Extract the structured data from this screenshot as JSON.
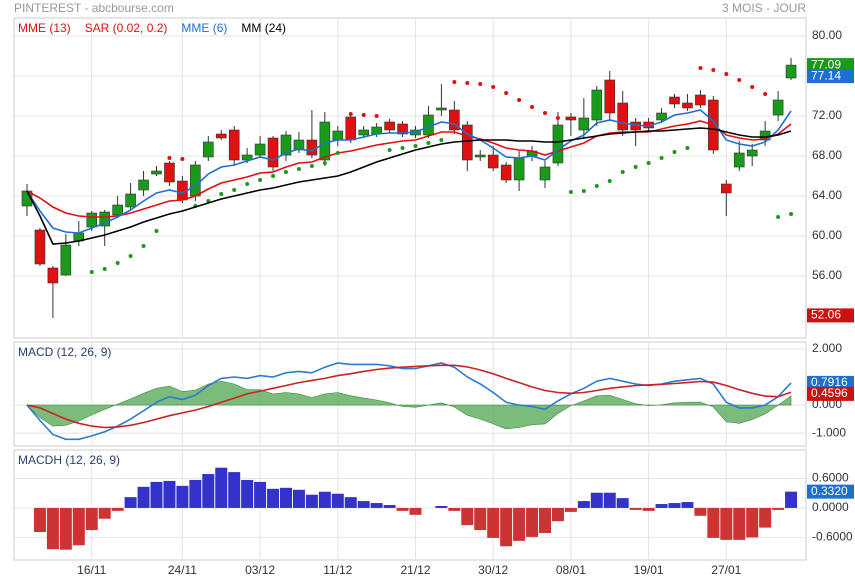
{
  "header": {
    "title": "PINTEREST - abcbourse.com",
    "period": "3 MOIS - JOUR"
  },
  "chart_data": [
    {
      "type": "candlestick",
      "ylim": [
        49.8,
        81.8
      ],
      "yticks": [
        {
          "value": 56,
          "label": "56.00"
        },
        {
          "value": 60,
          "label": "60.00"
        },
        {
          "value": 64,
          "label": "64.00"
        },
        {
          "value": 68,
          "label": "68.00"
        },
        {
          "value": 72,
          "label": "72.00"
        },
        {
          "value": 76,
          "label": "76.00"
        },
        {
          "value": 80,
          "label": "80.00"
        }
      ],
      "grid": true,
      "up_color": "#1a9a1a",
      "down_color": "#e01010",
      "open": [
        63.0,
        60.6,
        56.8,
        56.1,
        59.5,
        60.9,
        61.0,
        62.1,
        62.9,
        64.6,
        66.2,
        67.3,
        65.5,
        64.0,
        67.9,
        70.2,
        70.6,
        67.6,
        68.1,
        69.8,
        68.1,
        68.6,
        69.6,
        67.6,
        69.6,
        71.9,
        70.1,
        70.2,
        71.4,
        71.2,
        70.1,
        70.1,
        72.6,
        72.6,
        71.1,
        67.9,
        68.1,
        67.1,
        65.6,
        68.0,
        65.6,
        67.3,
        71.9,
        70.6,
        71.6,
        75.6,
        73.3,
        71.4,
        71.4,
        71.6,
        73.9,
        73.3,
        74.1,
        73.6,
        65.2,
        66.9,
        68.0,
        69.6,
        72.1,
        75.8
      ],
      "high": [
        65.2,
        60.8,
        57.0,
        60.2,
        61.5,
        62.5,
        62.6,
        64.0,
        65.3,
        66.5,
        67.0,
        67.5,
        66.0,
        67.5,
        70.0,
        70.6,
        71.0,
        68.8,
        70.0,
        70.0,
        70.5,
        70.4,
        72.6,
        72.4,
        71.0,
        72.2,
        71.0,
        71.3,
        71.7,
        71.5,
        71.0,
        73.0,
        75.2,
        73.5,
        71.5,
        68.6,
        69.0,
        67.4,
        68.5,
        69.0,
        67.5,
        72.4,
        72.3,
        73.8,
        75.0,
        76.5,
        74.5,
        71.8,
        71.8,
        72.8,
        74.2,
        74.2,
        74.6,
        74.0,
        65.6,
        69.5,
        69.2,
        71.5,
        74.5,
        77.8
      ],
      "low": [
        62.0,
        57.0,
        51.8,
        56.0,
        59.0,
        60.5,
        59.0,
        61.8,
        62.5,
        64.0,
        66.0,
        65.0,
        63.3,
        63.5,
        67.5,
        69.6,
        67.0,
        67.3,
        67.8,
        66.5,
        67.5,
        68.3,
        67.8,
        67.0,
        69.0,
        69.3,
        69.8,
        69.9,
        70.3,
        69.9,
        69.8,
        69.8,
        72.0,
        70.2,
        66.5,
        67.5,
        66.5,
        65.3,
        64.5,
        67.5,
        64.8,
        67.0,
        70.0,
        69.8,
        71.0,
        71.5,
        70.0,
        69.0,
        70.4,
        71.3,
        72.8,
        72.5,
        72.8,
        68.2,
        62.0,
        66.5,
        67.0,
        69.0,
        71.5,
        75.6
      ],
      "close": [
        64.5,
        57.2,
        55.3,
        59.1,
        60.3,
        62.3,
        62.4,
        63.1,
        64.2,
        65.6,
        66.5,
        65.4,
        63.6,
        67.1,
        69.4,
        69.8,
        67.6,
        68.1,
        69.2,
        66.9,
        70.1,
        69.6,
        68.1,
        71.4,
        70.5,
        69.6,
        70.6,
        70.9,
        70.6,
        70.2,
        70.6,
        72.1,
        72.8,
        70.6,
        67.6,
        68.1,
        66.8,
        65.6,
        67.8,
        68.5,
        66.9,
        71.1,
        71.6,
        71.8,
        74.6,
        72.3,
        70.6,
        70.6,
        70.8,
        72.3,
        73.2,
        72.8,
        73.1,
        68.6,
        64.3,
        68.3,
        68.6,
        70.5,
        73.6,
        77.09
      ],
      "series": [
        {
          "name": "MME (13)",
          "color": "#e01010",
          "values": [
            64.5,
            63.8,
            62.9,
            62.3,
            62.0,
            61.9,
            61.9,
            62.0,
            62.3,
            62.7,
            63.1,
            63.5,
            63.6,
            64.0,
            64.7,
            65.3,
            65.6,
            65.9,
            66.3,
            66.4,
            66.9,
            67.3,
            67.4,
            67.9,
            68.3,
            68.5,
            68.8,
            69.1,
            69.3,
            69.5,
            69.6,
            70.0,
            70.4,
            70.4,
            70.0,
            69.7,
            69.3,
            68.8,
            68.6,
            68.5,
            68.1,
            68.5,
            68.9,
            69.3,
            70.0,
            70.3,
            70.4,
            70.4,
            70.4,
            70.7,
            71.0,
            71.2,
            71.5,
            71.1,
            70.1,
            69.8,
            69.6,
            69.7,
            70.2,
            71.2
          ]
        },
        {
          "name": "SAR (0.02, 0.2)",
          "color": "#e01010",
          "below_color": "#1a9a1a",
          "marker": "dots",
          "values": [
            null,
            null,
            null,
            null,
            null,
            56.4,
            56.7,
            57.3,
            58.0,
            59.0,
            60.5,
            67.8,
            67.7,
            63.0,
            63.5,
            64.2,
            64.6,
            65.2,
            65.6,
            66.0,
            66.4,
            66.7,
            67.0,
            67.3,
            68.3,
            72.2,
            72.1,
            72.0,
            68.6,
            68.8,
            69.0,
            69.3,
            69.6,
            75.4,
            75.3,
            75.2,
            74.9,
            74.3,
            73.6,
            72.9,
            72.3,
            71.8,
            64.4,
            64.5,
            65.0,
            65.5,
            66.4,
            66.9,
            67.3,
            67.8,
            68.4,
            68.8,
            76.8,
            76.6,
            76.2,
            75.6,
            74.9,
            74.2,
            61.9,
            62.2
          ]
        },
        {
          "name": "MME (6)",
          "color": "#1e6fd0",
          "values": [
            64.5,
            62.5,
            60.8,
            60.4,
            60.3,
            60.8,
            61.3,
            61.9,
            62.6,
            63.5,
            64.3,
            64.6,
            64.3,
            65.0,
            66.2,
            66.9,
            67.1,
            67.5,
            67.9,
            67.6,
            68.3,
            68.7,
            68.5,
            69.3,
            69.6,
            69.6,
            69.9,
            70.2,
            70.3,
            70.3,
            70.4,
            70.9,
            71.4,
            71.2,
            70.2,
            69.6,
            68.8,
            67.9,
            67.8,
            68.0,
            67.6,
            68.6,
            69.5,
            70.1,
            71.3,
            71.6,
            71.3,
            71.1,
            71.0,
            71.4,
            72.1,
            72.3,
            72.6,
            71.5,
            69.6,
            69.2,
            69.0,
            69.4,
            70.6,
            72.5
          ]
        },
        {
          "name": "MM (24)",
          "color": "#000000",
          "values": [
            64.5,
            62.0,
            59.2,
            59.3,
            59.5,
            59.8,
            60.1,
            60.5,
            60.9,
            61.4,
            61.8,
            62.2,
            62.5,
            62.9,
            63.3,
            63.7,
            64.0,
            64.3,
            64.6,
            64.8,
            65.1,
            65.4,
            65.6,
            65.8,
            66.0,
            66.4,
            66.9,
            67.4,
            67.8,
            68.2,
            68.6,
            68.9,
            69.2,
            69.4,
            69.5,
            69.6,
            69.6,
            69.6,
            69.5,
            69.5,
            69.4,
            69.4,
            69.6,
            69.8,
            70.0,
            70.2,
            70.3,
            70.4,
            70.5,
            70.5,
            70.6,
            70.7,
            70.8,
            70.7,
            70.4,
            70.1,
            69.9,
            69.9,
            70.1,
            70.5
          ]
        }
      ],
      "tags": [
        {
          "value": 77.09,
          "label": "77.09",
          "color": "#1a9a1a"
        },
        {
          "value": 77.14,
          "label": "77.14",
          "color": "#1e6fd0"
        },
        {
          "value": 52.06,
          "label": "52.06",
          "color": "#cc1111"
        }
      ]
    },
    {
      "type": "line",
      "title": "MACD (12, 26, 9)",
      "ylim": [
        -1.46,
        2.25
      ],
      "yticks": [
        {
          "value": -1,
          "label": "-1.000"
        },
        {
          "value": 0,
          "label": "0.000"
        },
        {
          "value": 2,
          "label": "2.000"
        }
      ],
      "grid": true,
      "series": [
        {
          "color": "#5aaa5a",
          "marker": "area",
          "values": [
            0,
            -0.45,
            -0.75,
            -0.72,
            -0.57,
            -0.35,
            -0.15,
            0.03,
            0.22,
            0.42,
            0.6,
            0.68,
            0.48,
            0.53,
            0.75,
            0.85,
            0.75,
            0.55,
            0.55,
            0.4,
            0.45,
            0.4,
            0.27,
            0.4,
            0.45,
            0.33,
            0.25,
            0.18,
            0.08,
            -0.05,
            -0.08,
            0.0,
            0.08,
            -0.07,
            -0.36,
            -0.5,
            -0.67,
            -0.85,
            -0.8,
            -0.7,
            -0.67,
            -0.3,
            -0.02,
            0.15,
            0.33,
            0.35,
            0.2,
            0.05,
            -0.02,
            0.01,
            0.08,
            0.1,
            0.11,
            -0.07,
            -0.6,
            -0.65,
            -0.52,
            -0.32,
            0.0,
            0.33
          ]
        },
        {
          "color": "#2b7bd0",
          "values": [
            0,
            -0.55,
            -1.05,
            -1.22,
            -1.22,
            -1.1,
            -0.95,
            -0.75,
            -0.5,
            -0.2,
            0.1,
            0.3,
            0.2,
            0.35,
            0.7,
            0.95,
            1.0,
            0.95,
            1.05,
            1.0,
            1.15,
            1.2,
            1.15,
            1.35,
            1.5,
            1.45,
            1.45,
            1.45,
            1.4,
            1.3,
            1.3,
            1.4,
            1.5,
            1.35,
            1.0,
            0.75,
            0.45,
            0.1,
            0.0,
            -0.05,
            -0.15,
            0.15,
            0.4,
            0.6,
            0.85,
            0.95,
            0.85,
            0.75,
            0.7,
            0.75,
            0.85,
            0.9,
            0.95,
            0.75,
            0.1,
            -0.1,
            -0.1,
            0.0,
            0.3,
            0.7916
          ]
        },
        {
          "color": "#cc2222",
          "values": [
            0,
            -0.1,
            -0.3,
            -0.5,
            -0.65,
            -0.75,
            -0.8,
            -0.78,
            -0.72,
            -0.62,
            -0.5,
            -0.38,
            -0.28,
            -0.18,
            -0.05,
            0.1,
            0.25,
            0.4,
            0.5,
            0.6,
            0.7,
            0.8,
            0.88,
            0.95,
            1.05,
            1.12,
            1.2,
            1.27,
            1.32,
            1.35,
            1.38,
            1.4,
            1.42,
            1.42,
            1.36,
            1.25,
            1.12,
            0.95,
            0.8,
            0.65,
            0.52,
            0.45,
            0.42,
            0.45,
            0.52,
            0.6,
            0.65,
            0.7,
            0.72,
            0.74,
            0.77,
            0.8,
            0.84,
            0.82,
            0.7,
            0.55,
            0.42,
            0.32,
            0.3,
            0.4596
          ]
        }
      ],
      "tags": [
        {
          "value": 0.7916,
          "label": "0.7916",
          "color": "#1e6fd0"
        },
        {
          "value": 0.4596,
          "label": "0.4596",
          "color": "#cc1111"
        }
      ]
    },
    {
      "type": "bar",
      "title": "MACDH (12, 26, 9)",
      "ylim": [
        -1.06,
        1.18
      ],
      "yticks": [
        {
          "value": -0.6,
          "label": "-0.6000"
        },
        {
          "value": 0,
          "label": "0.0000"
        },
        {
          "value": 0.6,
          "label": "0.6000"
        }
      ],
      "grid": true,
      "up_color": "#3333cc",
      "down_color": "#cc3333",
      "values": [
        0,
        -0.49,
        -0.84,
        -0.85,
        -0.76,
        -0.45,
        -0.22,
        -0.06,
        0.22,
        0.43,
        0.53,
        0.55,
        0.45,
        0.57,
        0.69,
        0.82,
        0.73,
        0.57,
        0.53,
        0.39,
        0.41,
        0.37,
        0.27,
        0.33,
        0.29,
        0.22,
        0.14,
        0.1,
        0.06,
        -0.06,
        -0.14,
        0.0,
        0.04,
        -0.06,
        -0.35,
        -0.45,
        -0.61,
        -0.78,
        -0.67,
        -0.59,
        -0.51,
        -0.27,
        -0.08,
        0.14,
        0.31,
        0.31,
        0.2,
        -0.04,
        -0.06,
        0.08,
        0.1,
        0.12,
        -0.16,
        -0.61,
        -0.65,
        -0.65,
        -0.6,
        -0.4,
        -0.04,
        0.332
      ],
      "categories": [
        null,
        null,
        null,
        null,
        null,
        "16/11",
        null,
        null,
        null,
        null,
        null,
        null,
        "24/11",
        null,
        null,
        null,
        null,
        null,
        "03/12",
        null,
        null,
        null,
        null,
        null,
        "11/12",
        null,
        null,
        null,
        null,
        null,
        "21/12",
        null,
        null,
        null,
        null,
        null,
        "30/12",
        null,
        null,
        null,
        null,
        null,
        "08/01",
        null,
        null,
        null,
        null,
        null,
        "19/01",
        null,
        null,
        null,
        null,
        null,
        "27/01",
        null,
        null,
        null,
        null,
        null
      ],
      "tags": [
        {
          "value": 0.332,
          "label": "0.3320",
          "color": "#1e6fd0"
        }
      ]
    }
  ]
}
